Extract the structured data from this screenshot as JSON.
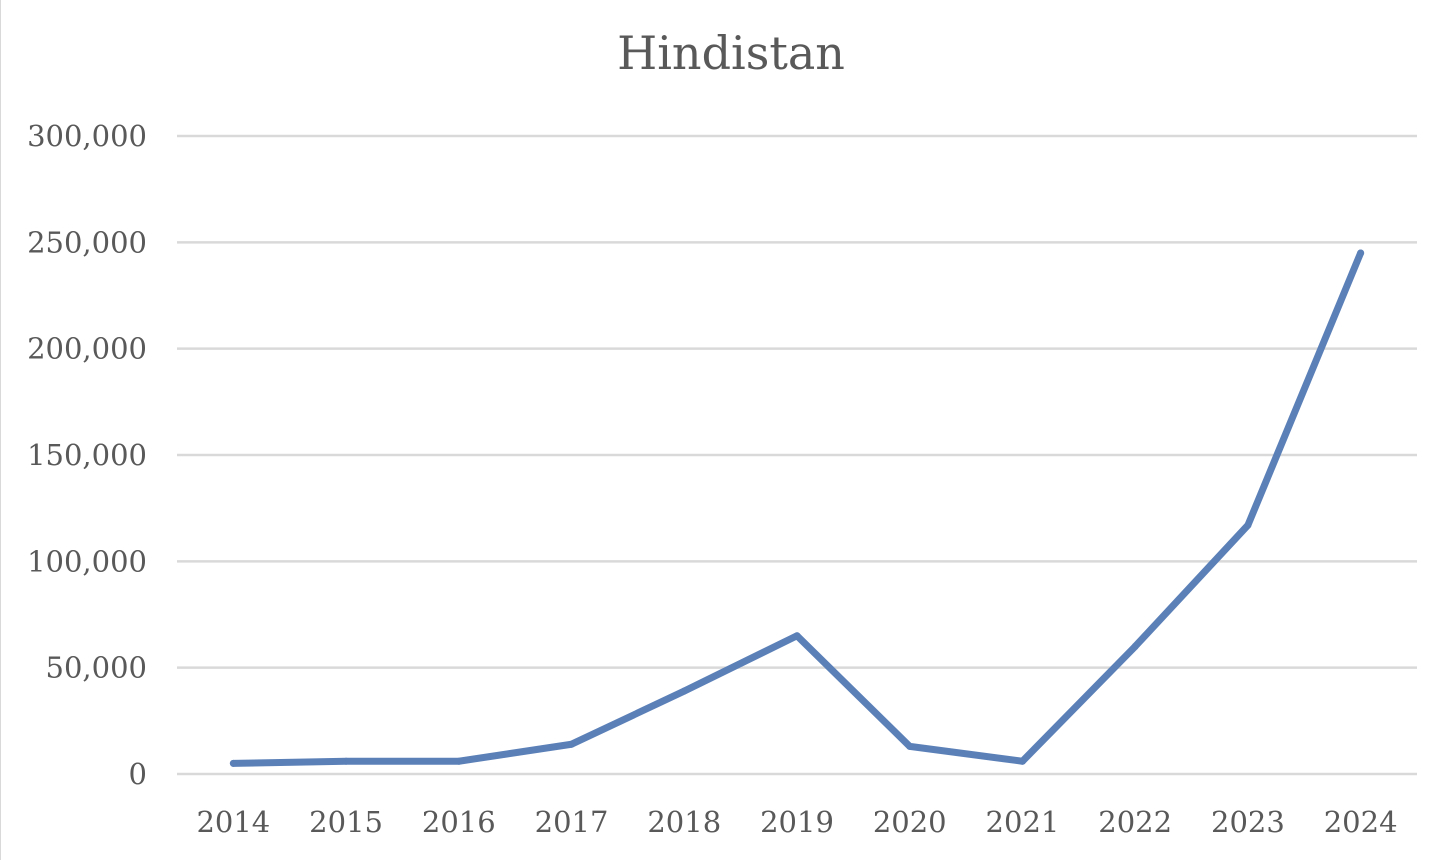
{
  "chart_data": {
    "type": "line",
    "title": "Hindistan",
    "xlabel": "",
    "ylabel": "",
    "categories": [
      "2014",
      "2015",
      "2016",
      "2017",
      "2018",
      "2019",
      "2020",
      "2021",
      "2022",
      "2023",
      "2024"
    ],
    "series": [
      {
        "values": [
          5000,
          6000,
          6000,
          14000,
          39000,
          65000,
          13000,
          6000,
          60000,
          117000,
          245000
        ],
        "color": "#5b80b8"
      }
    ],
    "yticks": [
      "0",
      "50,000",
      "100,000",
      "150,000",
      "200,000",
      "250,000",
      "300,000"
    ],
    "ylim": [
      0,
      300000
    ],
    "grid": true,
    "legend": "none",
    "gridline_color": "#d9d9d9",
    "text_color": "#595959"
  }
}
